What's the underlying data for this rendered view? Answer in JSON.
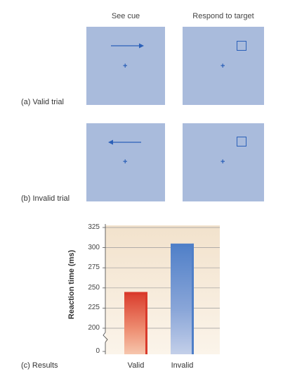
{
  "columns": {
    "cue_header": "See cue",
    "target_header": "Respond to target"
  },
  "panels": {
    "valid_label": "(a) Valid trial",
    "invalid_label": "(b) Invalid trial",
    "results_label": "(c) Results",
    "fixation_symbol": "+",
    "valid_cue_direction": "right",
    "invalid_cue_direction": "left",
    "screen_color": "#a9bbdc",
    "stimulus_color": "#2b60b8"
  },
  "chart_data": {
    "type": "bar",
    "categories": [
      "Valid",
      "Invalid"
    ],
    "values": [
      245,
      305
    ],
    "ylabel": "Reaction time (ms)",
    "yticks": [
      "325",
      "300",
      "275",
      "250",
      "225",
      "200",
      "0"
    ],
    "ylim": [
      200,
      325
    ],
    "axis_break": true,
    "grid": true,
    "colors": [
      "#d93a2b",
      "#4f7fc8"
    ],
    "background": "#f6ead6"
  }
}
